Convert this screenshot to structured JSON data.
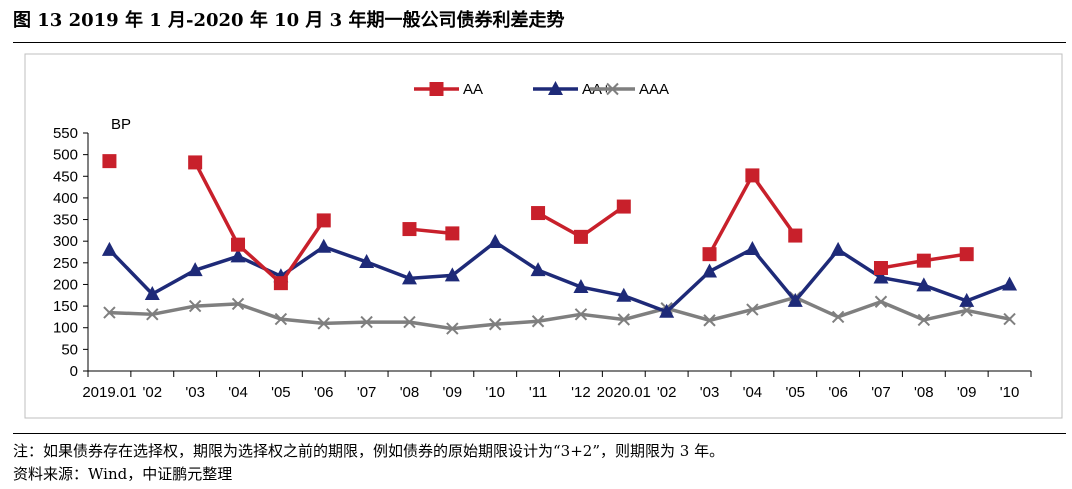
{
  "title": "图 13 2019 年 1 月-2020 年 10 月 3 年期一般公司债券利差走势",
  "note": "注：如果债券存在选择权，期限为选择权之前的期限，例如债券的原始期限设计为“3+2”，则期限为 3 年。",
  "source": "资料来源：Wind，中证鹏元整理",
  "chart_data": {
    "type": "line",
    "ylabel": "BP",
    "ylim": [
      0,
      550
    ],
    "yticks": [
      0,
      50,
      100,
      150,
      200,
      250,
      300,
      350,
      400,
      450,
      500,
      550
    ],
    "categories": [
      "2019.01",
      "02",
      "03",
      "04",
      "05",
      "06",
      "07",
      "08",
      "09",
      "10",
      "11",
      "12",
      "2020.01",
      "02",
      "03",
      "04",
      "05",
      "06",
      "07",
      "08",
      "09",
      "10"
    ],
    "tick_labels": [
      "2019.01",
      "'02",
      "'03",
      "'04",
      "'05",
      "'06",
      "'07",
      "'08",
      "'09",
      "'10",
      "'11",
      "'12",
      "2020.01",
      "'02",
      "'03",
      "'04",
      "'05",
      "'06",
      "'07",
      "'08",
      "'09",
      "'10"
    ],
    "legend_position": "top-center",
    "grid": false,
    "series": [
      {
        "name": "AA",
        "color": "#C8202B",
        "marker": "square",
        "values": [
          485,
          null,
          482,
          292,
          203,
          348,
          null,
          328,
          318,
          null,
          365,
          310,
          380,
          null,
          270,
          452,
          313,
          null,
          238,
          255,
          270,
          null
        ]
      },
      {
        "name": "AA+",
        "color": "#1E2A78",
        "marker": "triangle",
        "values": [
          280,
          178,
          233,
          265,
          219,
          287,
          252,
          214,
          221,
          298,
          233,
          194,
          174,
          137,
          230,
          282,
          162,
          280,
          216,
          198,
          162,
          200
        ]
      },
      {
        "name": "AAA",
        "color": "#7F7F7F",
        "marker": "x",
        "values": [
          135,
          131,
          150,
          155,
          120,
          110,
          113,
          113,
          98,
          108,
          115,
          131,
          119,
          145,
          117,
          142,
          170,
          125,
          160,
          118,
          140,
          120
        ]
      }
    ]
  }
}
